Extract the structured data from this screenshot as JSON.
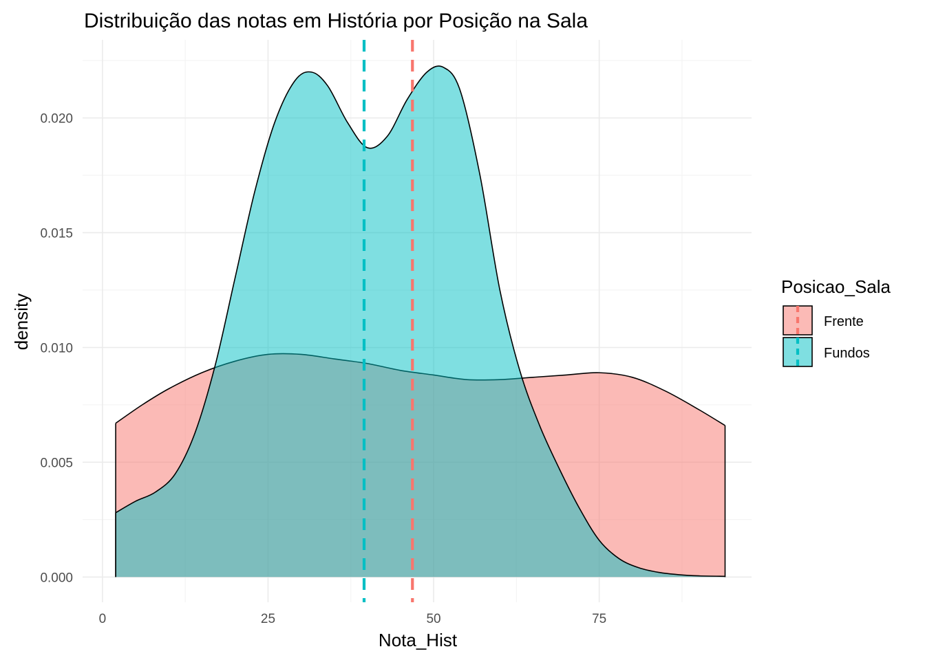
{
  "chart_data": {
    "type": "area",
    "title": "Distribuição das notas em História por Posição na Sala",
    "xlabel": "Nota_Hist",
    "ylabel": "density",
    "xlim": [
      -3,
      98
    ],
    "ylim": [
      -0.0011,
      0.0234
    ],
    "x_ticks": [
      0,
      25,
      50,
      75
    ],
    "x_tick_labels": [
      "0",
      "25",
      "50",
      "75"
    ],
    "y_ticks": [
      0,
      0.005,
      0.01,
      0.015,
      0.02
    ],
    "y_tick_labels": [
      "0.000",
      "0.005",
      "0.010",
      "0.015",
      "0.020"
    ],
    "grid": true,
    "legend": {
      "title": "Posicao_Sala",
      "position": "right"
    },
    "series": [
      {
        "name": "Frente",
        "color": "#F8766D",
        "mean": 46.8,
        "x": [
          2,
          6,
          10,
          15,
          20,
          25,
          30,
          35,
          40,
          45,
          50,
          55,
          60,
          65,
          70,
          75,
          80,
          85,
          90,
          94
        ],
        "density": [
          0.0067,
          0.0075,
          0.0082,
          0.0089,
          0.0094,
          0.0097,
          0.0097,
          0.0095,
          0.0093,
          0.009,
          0.0088,
          0.0086,
          0.0086,
          0.0087,
          0.0088,
          0.0089,
          0.0087,
          0.0081,
          0.0073,
          0.0066
        ]
      },
      {
        "name": "Fundos",
        "color": "#00BFC4",
        "mean": 39.5,
        "x": [
          2,
          5,
          8,
          11,
          14,
          17,
          20,
          23,
          26,
          29,
          31.5,
          34,
          37,
          40,
          43,
          46,
          49,
          51.5,
          54,
          57,
          60,
          63,
          66,
          69,
          72,
          75,
          78,
          81,
          84,
          87,
          90,
          94
        ],
        "density": [
          0.0028,
          0.0033,
          0.0037,
          0.0045,
          0.0063,
          0.0092,
          0.013,
          0.0168,
          0.0198,
          0.0216,
          0.022,
          0.0214,
          0.0198,
          0.0187,
          0.0192,
          0.0208,
          0.022,
          0.0222,
          0.0212,
          0.0175,
          0.0125,
          0.009,
          0.0066,
          0.0047,
          0.003,
          0.0016,
          0.0008,
          0.0004,
          0.0002,
          0.0001,
          5e-05,
          3e-05
        ]
      }
    ]
  }
}
